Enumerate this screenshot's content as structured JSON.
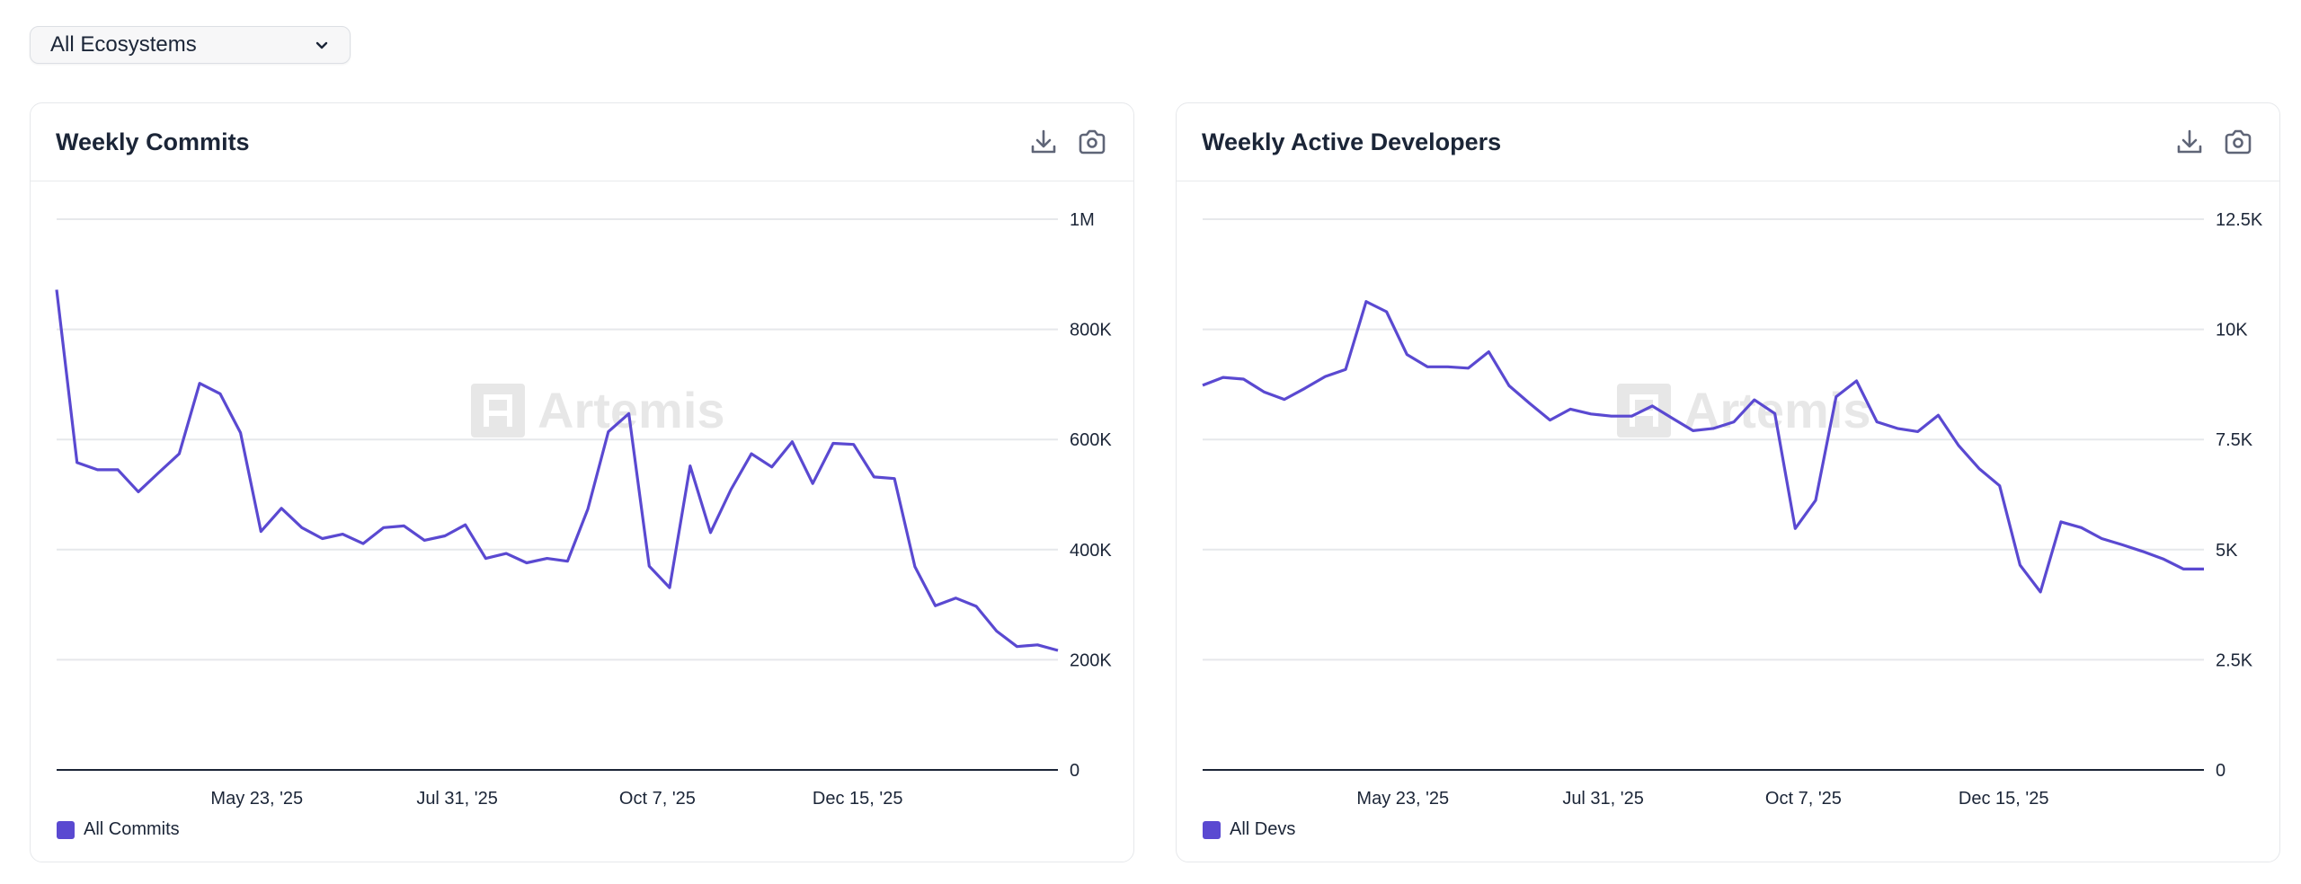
{
  "filter": {
    "selected": "All Ecosystems"
  },
  "colors": {
    "series": "#5a49d1",
    "grid": "#e6e8eb",
    "axis": "#1b2537"
  },
  "watermark": "Artemis",
  "chart_data": [
    {
      "type": "line",
      "title": "Weekly Commits",
      "legend": [
        "All Commits"
      ],
      "legend_placement": "bottom-left",
      "ylim": [
        0,
        1000000
      ],
      "y_ticks": [
        {
          "value": 0,
          "label": "0"
        },
        {
          "value": 200000,
          "label": "200K"
        },
        {
          "value": 400000,
          "label": "400K"
        },
        {
          "value": 600000,
          "label": "600K"
        },
        {
          "value": 800000,
          "label": "800K"
        },
        {
          "value": 1000000,
          "label": "1M"
        }
      ],
      "x_ticks": [
        {
          "index": 9.8,
          "label": "May 23, '25"
        },
        {
          "index": 19.6,
          "label": "Jul 31, '25"
        },
        {
          "index": 29.4,
          "label": "Oct 7, '25"
        },
        {
          "index": 39.2,
          "label": "Dec 15, '25"
        }
      ],
      "series": [
        {
          "name": "All Commits",
          "values": [
            872000,
            558000,
            545000,
            545000,
            505000,
            540000,
            574000,
            702000,
            683000,
            612000,
            433000,
            475000,
            440000,
            420000,
            428000,
            411000,
            440000,
            443000,
            417000,
            425000,
            445000,
            384000,
            393000,
            376000,
            384000,
            379000,
            474000,
            614000,
            647000,
            370000,
            331000,
            552000,
            431000,
            509000,
            574000,
            550000,
            596000,
            520000,
            593000,
            591000,
            532000,
            529000,
            369000,
            298000,
            312000,
            297000,
            252000,
            224000,
            227000,
            217000
          ]
        }
      ]
    },
    {
      "type": "line",
      "title": "Weekly Active Developers",
      "legend": [
        "All Devs"
      ],
      "legend_placement": "bottom-left",
      "ylim": [
        0,
        12500
      ],
      "y_ticks": [
        {
          "value": 0,
          "label": "0"
        },
        {
          "value": 2500,
          "label": "2.5K"
        },
        {
          "value": 5000,
          "label": "5K"
        },
        {
          "value": 7500,
          "label": "7.5K"
        },
        {
          "value": 10000,
          "label": "10K"
        },
        {
          "value": 12500,
          "label": "12.5K"
        }
      ],
      "x_ticks": [
        {
          "index": 9.8,
          "label": "May 23, '25"
        },
        {
          "index": 19.6,
          "label": "Jul 31, '25"
        },
        {
          "index": 29.4,
          "label": "Oct 7, '25"
        },
        {
          "index": 39.2,
          "label": "Dec 15, '25"
        }
      ],
      "series": [
        {
          "name": "All Devs",
          "values": [
            8730,
            8910,
            8870,
            8580,
            8410,
            8660,
            8930,
            9090,
            10630,
            10400,
            9430,
            9150,
            9150,
            9120,
            9490,
            8720,
            8320,
            7940,
            8190,
            8080,
            8030,
            8030,
            8260,
            7980,
            7700,
            7750,
            7900,
            8400,
            8090,
            5480,
            6120,
            8470,
            8830,
            7900,
            7750,
            7680,
            8050,
            7360,
            6840,
            6450,
            4650,
            4040,
            5630,
            5500,
            5250,
            5110,
            4960,
            4790,
            4560,
            4560
          ]
        }
      ]
    }
  ]
}
